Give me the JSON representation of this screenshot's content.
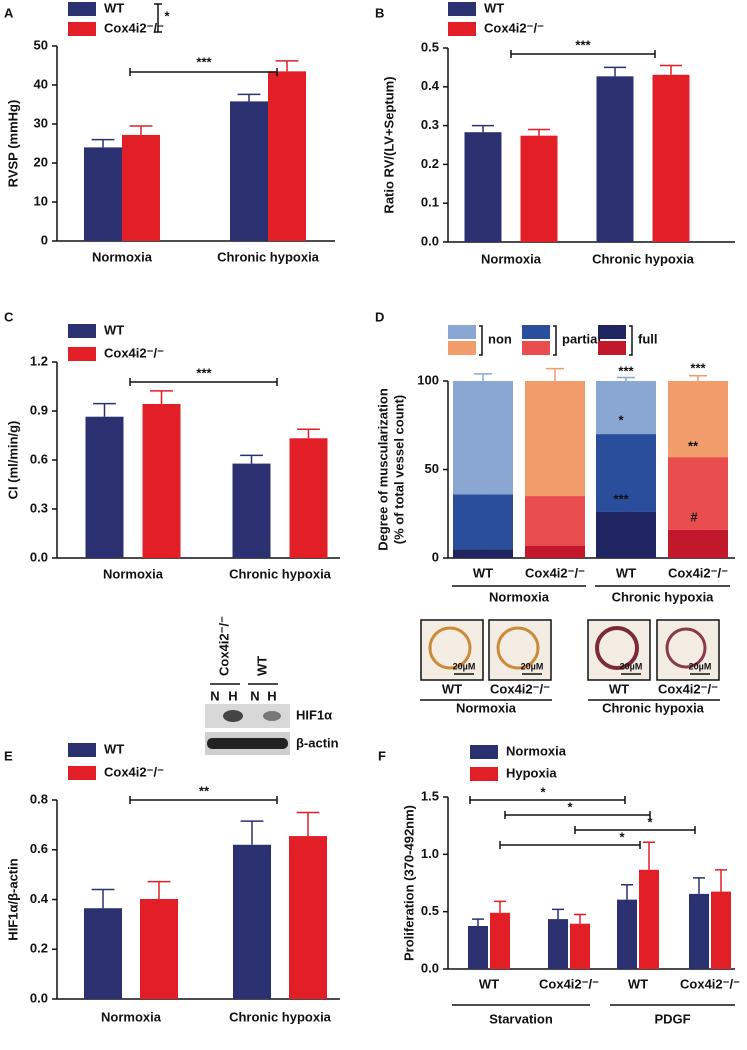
{
  "chart_data": [
    {
      "type": "bar",
      "panel_label": "A",
      "y_label": [
        "RVSP (mmHg)"
      ],
      "categories": [
        "Normoxia",
        "Chronic hypoxia"
      ],
      "series": [
        {
          "name": "WT",
          "color": "#2b3070",
          "values": [
            24,
            35.8
          ],
          "errors": [
            2,
            1.8
          ]
        },
        {
          "name": "Cox4i2⁻/⁻",
          "color": "#e21f26",
          "values": [
            27.2,
            43.5
          ],
          "errors": [
            2.3,
            2.7
          ]
        }
      ],
      "ylim": [
        0,
        50
      ],
      "yticks": [
        0,
        10,
        20,
        30,
        40,
        50
      ],
      "annotations": [
        "***",
        "*"
      ]
    },
    {
      "type": "bar",
      "panel_label": "B",
      "y_label": [
        "Ratio RV/(LV+Septum)"
      ],
      "categories": [
        "Normoxia",
        "Chronic hypoxia"
      ],
      "series": [
        {
          "name": "WT",
          "color": "#2b3070",
          "values": [
            0.283,
            0.427
          ],
          "errors": [
            0.017,
            0.023
          ]
        },
        {
          "name": "Cox4i2⁻/⁻",
          "color": "#e21f26",
          "values": [
            0.274,
            0.431
          ],
          "errors": [
            0.016,
            0.024
          ]
        }
      ],
      "ylim": [
        0,
        0.5
      ],
      "yticks": [
        {
          "value": 0,
          "label": "0.0"
        },
        0.1,
        0.2,
        0.3,
        0.4,
        0.5
      ],
      "annotations": [
        "***"
      ]
    },
    {
      "type": "bar",
      "panel_label": "C",
      "y_label": [
        "CI (ml/min/g)"
      ],
      "categories": [
        "Normoxia",
        "Chronic hypoxia"
      ],
      "series": [
        {
          "name": "WT",
          "color": "#2b3070",
          "values": [
            0.865,
            0.578
          ],
          "errors": [
            0.08,
            0.05
          ]
        },
        {
          "name": "Cox4i2⁻/⁻",
          "color": "#e21f26",
          "values": [
            0.943,
            0.733
          ],
          "errors": [
            0.08,
            0.055
          ]
        }
      ],
      "ylim": [
        0,
        1.2
      ],
      "yticks": [
        {
          "value": 0,
          "label": "0.0"
        },
        0.3,
        0.6,
        0.9,
        1.2
      ],
      "annotations": [
        "***"
      ]
    },
    {
      "type": "stacked_bar",
      "panel_label": "D",
      "y_label": [
        "Degree of muscularization",
        "(% of total vessel count)"
      ],
      "categories": [
        "WT",
        "Cox4i2⁻/⁻",
        "WT",
        "Cox4i2⁻/⁻"
      ],
      "groups": [
        "Normoxia",
        "Chronic hypoxia"
      ],
      "series": [
        {
          "name": "full",
          "colors": [
            "#1f2560",
            "#c2182b",
            "#1f2560",
            "#c2182b"
          ],
          "values": [
            5,
            7,
            26,
            16
          ],
          "errors": [
            1,
            1.5,
            4,
            3
          ]
        },
        {
          "name": "partial",
          "colors": [
            "#2a4d9c",
            "#ea4d4d",
            "#2a4d9c",
            "#ea4d4d"
          ],
          "values": [
            31,
            28,
            44,
            41
          ],
          "errors": [
            4,
            8,
            4,
            3
          ]
        },
        {
          "name": "non",
          "colors": [
            "#8aa7d4",
            "#f29c6b",
            "#8aa7d4",
            "#f29c6b"
          ],
          "values": [
            64,
            65,
            30,
            43
          ],
          "errors": [
            4,
            7,
            2,
            3
          ]
        }
      ],
      "ylim": [
        0,
        100
      ],
      "yticks": [
        0,
        50,
        100
      ],
      "annotations": [
        "***",
        "***",
        "*",
        "**",
        "***",
        "#"
      ]
    },
    {
      "type": "bar",
      "panel_label": "E",
      "y_label": [
        "HIF1α/β-actin"
      ],
      "categories": [
        "Normoxia",
        "Chronic hypoxia"
      ],
      "series": [
        {
          "name": "WT",
          "color": "#2b3070",
          "values": [
            0.365,
            0.62
          ],
          "errors": [
            0.075,
            0.095
          ]
        },
        {
          "name": "Cox4i2⁻/⁻",
          "color": "#e21f26",
          "values": [
            0.402,
            0.655
          ],
          "errors": [
            0.07,
            0.095
          ]
        }
      ],
      "ylim": [
        0,
        0.8
      ],
      "yticks": [
        {
          "value": 0,
          "label": "0.0"
        },
        0.2,
        0.4,
        0.6,
        0.8
      ],
      "annotations": [
        "**"
      ]
    },
    {
      "type": "bar",
      "panel_label": "F",
      "y_label": [
        "Proliferation (370-492nm)"
      ],
      "categories": [
        "WT",
        "Cox4i2⁻/⁻",
        "WT",
        "Cox4i2⁻/⁻"
      ],
      "groups": [
        "Starvation",
        "PDGF"
      ],
      "series": [
        {
          "name": "Normoxia",
          "color": "#2b3070",
          "values": [
            0.375,
            0.435,
            0.605,
            0.655
          ],
          "errors": [
            0.06,
            0.085,
            0.13,
            0.14
          ]
        },
        {
          "name": "Hypoxia",
          "color": "#e21f26",
          "values": [
            0.49,
            0.395,
            0.865,
            0.675
          ],
          "errors": [
            0.1,
            0.08,
            0.24,
            0.19
          ]
        }
      ],
      "ylim": [
        0,
        1.5
      ],
      "yticks": [
        {
          "value": 0,
          "label": "0.0"
        },
        0.5,
        {
          "value": 1,
          "label": "1.0"
        },
        1.5
      ],
      "annotations": [
        "*",
        "*",
        "*",
        "*"
      ]
    }
  ],
  "micrographs": {
    "scale_bars": [
      "20µM",
      "20µM",
      "20µM",
      "20µM"
    ],
    "labels": [
      "WT",
      "Cox4i2⁻/⁻",
      "WT",
      "Cox4i2⁻/⁻"
    ],
    "groups": [
      "Normoxia",
      "Chronic hypoxia"
    ]
  },
  "blot": {
    "genotypes": [
      "Cox4i2⁻/⁻",
      "WT"
    ],
    "lanes": [
      "N",
      "H",
      "N",
      "H"
    ],
    "rows": [
      "HIF1α",
      "β-actin"
    ]
  }
}
